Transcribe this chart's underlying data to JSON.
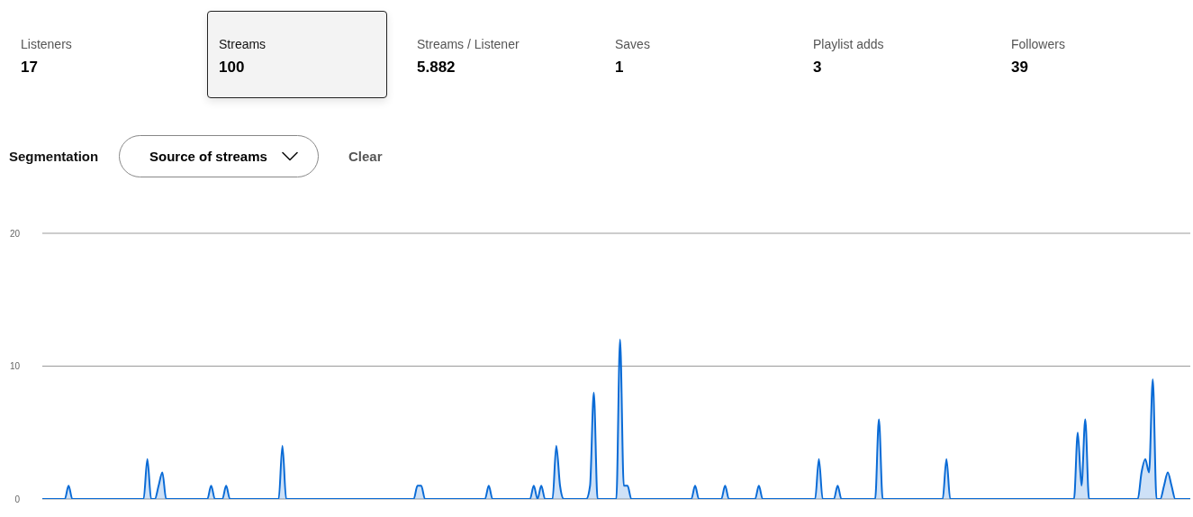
{
  "chart_data": [
    {
      "type": "other",
      "categories": [
        "Listeners",
        "Streams",
        "Streams / Listener",
        "Saves",
        "Playlist adds",
        "Followers"
      ],
      "values": [
        17,
        100,
        5.882,
        1,
        3,
        39
      ],
      "data_labels": true
    },
    {
      "type": "area",
      "annotations": [
        "Segmentation",
        "Source of streams",
        "Clear"
      ],
      "categories": [
        null,
        null,
        null,
        null,
        null,
        null,
        null,
        null,
        null,
        null,
        null,
        null,
        null,
        null,
        null,
        null,
        null,
        null,
        null,
        null,
        null,
        null,
        null,
        null,
        null,
        null,
        null,
        null,
        null,
        null,
        null,
        null,
        null,
        null,
        null,
        null,
        null,
        null,
        null,
        null,
        null,
        null,
        null,
        null,
        null,
        null,
        null,
        null,
        null,
        null,
        null,
        null,
        null,
        null,
        null,
        null,
        null,
        null,
        null,
        null,
        null,
        null,
        null,
        null,
        null,
        null,
        null,
        null,
        null,
        null,
        null,
        null,
        null,
        null,
        null,
        null,
        null,
        null,
        null,
        null,
        null,
        null,
        null,
        null,
        null,
        null,
        null,
        null,
        null,
        null,
        null,
        null,
        null,
        null,
        null,
        null,
        null,
        null,
        null,
        null,
        null,
        null,
        null,
        null,
        null,
        null,
        null,
        null,
        null,
        null,
        null,
        null,
        null,
        null,
        null,
        null,
        null,
        null,
        null,
        null,
        null,
        null,
        null,
        null,
        null,
        null,
        null,
        null,
        null,
        null,
        null,
        null,
        null,
        null,
        null,
        null,
        null,
        null,
        null,
        null,
        null,
        null,
        null,
        null,
        null,
        null,
        null,
        null,
        null,
        null,
        null,
        null,
        null,
        null,
        null,
        null,
        null,
        null,
        null,
        null,
        null,
        null,
        null,
        null,
        null,
        null,
        null,
        null,
        null,
        null,
        null,
        null,
        null,
        null,
        null,
        null,
        null,
        null,
        null,
        null,
        null,
        null,
        null,
        null,
        null,
        null,
        null,
        null,
        null,
        null,
        null,
        null,
        null,
        null,
        null,
        null,
        null,
        null,
        null,
        null,
        null,
        null,
        null,
        null,
        null,
        null,
        null,
        null,
        null,
        null,
        null,
        null,
        null,
        null,
        null,
        null,
        null,
        null,
        null,
        null,
        null,
        null,
        null,
        null,
        null,
        null,
        null,
        null,
        null,
        null,
        null,
        null,
        null,
        null,
        null,
        null,
        null,
        null,
        null,
        null,
        null,
        null,
        null,
        null,
        null,
        null,
        null,
        null,
        null,
        null,
        null,
        null,
        null,
        null,
        null,
        null,
        null,
        null,
        null,
        null,
        null,
        null,
        null,
        null,
        null,
        null,
        null,
        null,
        null,
        null,
        null,
        null,
        null,
        null,
        null,
        null,
        null,
        null,
        null,
        null,
        null,
        null,
        null,
        null,
        null,
        null,
        null,
        null,
        null,
        null,
        null,
        null,
        null,
        null,
        null,
        null,
        null,
        null,
        null,
        null,
        null,
        null,
        null,
        null,
        null,
        null,
        null
      ],
      "values": [
        0,
        0,
        0,
        0,
        0,
        0,
        0,
        1,
        0,
        0,
        0,
        0,
        0,
        0,
        0,
        0,
        0,
        0,
        0,
        0,
        0,
        0,
        0,
        0,
        0,
        0,
        0,
        0,
        3,
        0,
        0,
        1,
        2,
        0,
        0,
        0,
        0,
        0,
        0,
        0,
        0,
        0,
        0,
        0,
        0,
        1,
        0,
        0,
        0,
        1,
        0,
        0,
        0,
        0,
        0,
        0,
        0,
        0,
        0,
        0,
        0,
        0,
        0,
        0,
        4,
        0,
        0,
        0,
        0,
        0,
        0,
        0,
        0,
        0,
        0,
        0,
        0,
        0,
        0,
        0,
        0,
        0,
        0,
        0,
        0,
        0,
        0,
        0,
        0,
        0,
        0,
        0,
        0,
        0,
        0,
        0,
        0,
        0,
        0,
        0,
        1,
        1,
        0,
        0,
        0,
        0,
        0,
        0,
        0,
        0,
        0,
        0,
        0,
        0,
        0,
        0,
        0,
        0,
        0,
        1,
        0,
        0,
        0,
        0,
        0,
        0,
        0,
        0,
        0,
        0,
        0,
        1,
        0,
        1,
        0,
        0,
        0,
        4,
        1,
        0,
        0,
        0,
        0,
        0,
        0,
        0,
        1,
        8,
        0,
        0,
        0,
        0,
        0,
        0,
        12,
        1,
        1,
        0,
        0,
        0,
        0,
        0,
        0,
        0,
        0,
        0,
        0,
        0,
        0,
        0,
        0,
        0,
        0,
        0,
        1,
        0,
        0,
        0,
        0,
        0,
        0,
        0,
        1,
        0,
        0,
        0,
        0,
        0,
        0,
        0,
        0,
        1,
        0,
        0,
        0,
        0,
        0,
        0,
        0,
        0,
        0,
        0,
        0,
        0,
        0,
        0,
        0,
        3,
        0,
        0,
        0,
        0,
        1,
        0,
        0,
        0,
        0,
        0,
        0,
        0,
        0,
        0,
        0,
        6,
        0,
        0,
        0,
        0,
        0,
        0,
        0,
        0,
        0,
        0,
        0,
        0,
        0,
        0,
        0,
        0,
        0,
        3,
        0,
        0,
        0,
        0,
        0,
        0,
        0,
        0,
        0,
        0,
        0,
        0,
        0,
        0,
        0,
        0,
        0,
        0,
        0,
        0,
        0,
        0,
        0,
        0,
        0,
        0,
        0,
        0,
        0,
        0,
        0,
        0,
        0,
        0,
        5,
        1,
        6,
        0,
        0,
        0,
        0,
        0,
        0,
        0,
        0,
        0,
        0,
        0,
        0,
        0,
        0,
        2,
        3,
        2,
        9,
        0,
        0,
        1,
        2,
        1,
        0,
        0,
        0,
        0,
        0
      ],
      "color": "#0a6bd6",
      "ylim": [
        0,
        20
      ],
      "yticks": [
        0,
        10,
        20
      ],
      "grid": "y",
      "tick_labels": "y"
    }
  ]
}
